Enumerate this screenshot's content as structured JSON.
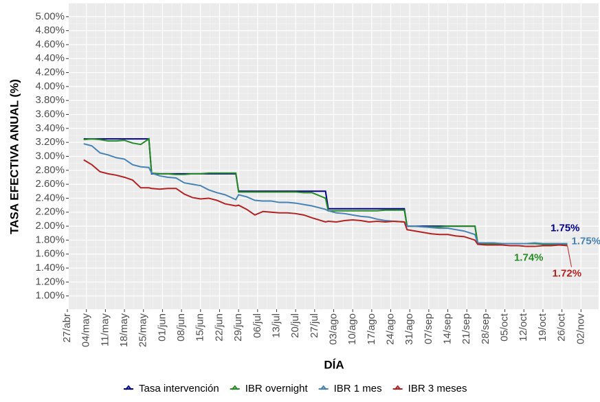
{
  "chart_data": {
    "type": "line",
    "x_label": "DÍA",
    "y_label": "TASA EFECTIVA ANUAL (%)",
    "xlim": [
      0.5,
      195.5
    ],
    "xticks": [
      {
        "value": 0,
        "label": "27/abr"
      },
      {
        "value": 7,
        "label": "04/may"
      },
      {
        "value": 14,
        "label": "11/may"
      },
      {
        "value": 21,
        "label": "18/may"
      },
      {
        "value": 28,
        "label": "25/may"
      },
      {
        "value": 35,
        "label": "01/jun"
      },
      {
        "value": 42,
        "label": "08/jun"
      },
      {
        "value": 49,
        "label": "15/jun"
      },
      {
        "value": 56,
        "label": "22/jun"
      },
      {
        "value": 63,
        "label": "29/jun"
      },
      {
        "value": 70,
        "label": "06/jul"
      },
      {
        "value": 77,
        "label": "13/jul"
      },
      {
        "value": 84,
        "label": "20/jul"
      },
      {
        "value": 91,
        "label": "27/jul"
      },
      {
        "value": 98,
        "label": "03/ago"
      },
      {
        "value": 105,
        "label": "10/ago"
      },
      {
        "value": 112,
        "label": "17/ago"
      },
      {
        "value": 119,
        "label": "24/ago"
      },
      {
        "value": 126,
        "label": "31/ago"
      },
      {
        "value": 133,
        "label": "07/sep"
      },
      {
        "value": 140,
        "label": "14/sep"
      },
      {
        "value": 147,
        "label": "21/sep"
      },
      {
        "value": 154,
        "label": "28/sep"
      },
      {
        "value": 161,
        "label": "05/oct"
      },
      {
        "value": 168,
        "label": "12/oct"
      },
      {
        "value": 175,
        "label": "19/oct"
      },
      {
        "value": 182,
        "label": "26/oct"
      },
      {
        "value": 189,
        "label": "02/nov"
      }
    ],
    "ylim": [
      0.81,
      5.19
    ],
    "yticks": [
      {
        "value": 1.0,
        "label": "1.00%"
      },
      {
        "value": 1.2,
        "label": "1.20%"
      },
      {
        "value": 1.4,
        "label": "1.40%"
      },
      {
        "value": 1.6,
        "label": "1.60%"
      },
      {
        "value": 1.8,
        "label": "1.80%"
      },
      {
        "value": 2.0,
        "label": "2.00%"
      },
      {
        "value": 2.2,
        "label": "2.20%"
      },
      {
        "value": 2.4,
        "label": "2.40%"
      },
      {
        "value": 2.6,
        "label": "2.60%"
      },
      {
        "value": 2.8,
        "label": "2.80%"
      },
      {
        "value": 3.0,
        "label": "3.00%"
      },
      {
        "value": 3.2,
        "label": "3.20%"
      },
      {
        "value": 3.4,
        "label": "3.40%"
      },
      {
        "value": 3.6,
        "label": "3.60%"
      },
      {
        "value": 3.8,
        "label": "3.80%"
      },
      {
        "value": 4.0,
        "label": "4.00%"
      },
      {
        "value": 4.2,
        "label": "4.20%"
      },
      {
        "value": 4.4,
        "label": "4.40%"
      },
      {
        "value": 4.6,
        "label": "4.60%"
      },
      {
        "value": 4.8,
        "label": "4.80%"
      },
      {
        "value": 5.0,
        "label": "5.00%"
      }
    ],
    "grid": true,
    "legend": "bottom",
    "x": [
      6,
      9,
      12,
      15,
      18,
      21,
      24,
      27,
      30,
      31,
      34,
      37,
      40,
      43,
      46,
      49,
      52,
      55,
      58,
      62,
      63,
      66,
      69,
      72,
      75,
      78,
      81,
      84,
      87,
      90,
      95,
      96,
      99,
      102,
      105,
      108,
      111,
      114,
      117,
      120,
      124,
      125,
      128,
      131,
      134,
      137,
      140,
      143,
      146,
      150,
      151,
      154,
      157,
      160,
      163,
      166,
      169,
      172,
      175,
      178,
      181,
      184
    ],
    "series": [
      {
        "name": "Tasa intervención",
        "color": "#00008b",
        "values": [
          3.25,
          3.25,
          3.25,
          3.25,
          3.25,
          3.25,
          3.25,
          3.25,
          3.25,
          2.75,
          2.75,
          2.75,
          2.75,
          2.75,
          2.75,
          2.75,
          2.75,
          2.75,
          2.75,
          2.75,
          2.5,
          2.5,
          2.5,
          2.5,
          2.5,
          2.5,
          2.5,
          2.5,
          2.5,
          2.5,
          2.5,
          2.25,
          2.25,
          2.25,
          2.25,
          2.25,
          2.25,
          2.25,
          2.25,
          2.25,
          2.25,
          2.0,
          2.0,
          2.0,
          2.0,
          2.0,
          2.0,
          2.0,
          2.0,
          2.0,
          1.75,
          1.75,
          1.75,
          1.75,
          1.75,
          1.75,
          1.75,
          1.75,
          1.75,
          1.75,
          1.75,
          1.75
        ]
      },
      {
        "name": "IBR overnight",
        "color": "#228b22",
        "values": [
          3.24,
          3.25,
          3.24,
          3.22,
          3.22,
          3.23,
          3.19,
          3.17,
          3.25,
          2.76,
          2.75,
          2.75,
          2.74,
          2.74,
          2.75,
          2.75,
          2.76,
          2.76,
          2.76,
          2.76,
          2.49,
          2.49,
          2.49,
          2.49,
          2.49,
          2.49,
          2.49,
          2.49,
          2.48,
          2.48,
          2.4,
          2.22,
          2.22,
          2.22,
          2.22,
          2.22,
          2.22,
          2.22,
          2.23,
          2.23,
          2.23,
          2.0,
          2.0,
          1.99,
          1.99,
          1.99,
          2.0,
          2.0,
          2.0,
          2.0,
          1.76,
          1.75,
          1.75,
          1.75,
          1.75,
          1.75,
          1.75,
          1.75,
          1.74,
          1.74,
          1.74,
          1.74
        ]
      },
      {
        "name": "IBR 1 mes",
        "color": "#4682b4",
        "values": [
          3.18,
          3.15,
          3.05,
          3.02,
          2.98,
          2.96,
          2.88,
          2.85,
          2.84,
          2.76,
          2.72,
          2.7,
          2.69,
          2.62,
          2.6,
          2.58,
          2.52,
          2.48,
          2.45,
          2.38,
          2.45,
          2.42,
          2.37,
          2.36,
          2.36,
          2.34,
          2.34,
          2.33,
          2.31,
          2.29,
          2.24,
          2.22,
          2.19,
          2.18,
          2.16,
          2.14,
          2.13,
          2.1,
          2.08,
          2.07,
          2.06,
          2.0,
          2.0,
          1.99,
          1.98,
          1.97,
          1.97,
          1.95,
          1.93,
          1.88,
          1.76,
          1.76,
          1.76,
          1.75,
          1.75,
          1.75,
          1.75,
          1.76,
          1.75,
          1.75,
          1.75,
          1.75
        ]
      },
      {
        "name": "IBR 3 meses",
        "color": "#b22222",
        "values": [
          2.95,
          2.88,
          2.78,
          2.75,
          2.73,
          2.7,
          2.66,
          2.55,
          2.55,
          2.54,
          2.53,
          2.54,
          2.54,
          2.46,
          2.41,
          2.39,
          2.4,
          2.37,
          2.32,
          2.29,
          2.3,
          2.24,
          2.16,
          2.21,
          2.2,
          2.19,
          2.19,
          2.18,
          2.16,
          2.12,
          2.06,
          2.07,
          2.06,
          2.08,
          2.09,
          2.08,
          2.06,
          2.07,
          2.06,
          2.07,
          2.06,
          1.95,
          1.93,
          1.91,
          1.89,
          1.88,
          1.88,
          1.86,
          1.85,
          1.8,
          1.74,
          1.73,
          1.73,
          1.73,
          1.72,
          1.72,
          1.71,
          1.71,
          1.72,
          1.72,
          1.73,
          1.72
        ]
      }
    ],
    "annotations": [
      {
        "text": "1.75%",
        "value": 1.75,
        "color": "#00008b"
      },
      {
        "text": "1.75%",
        "value": 1.75,
        "color": "#4682b4"
      },
      {
        "text": "1.74%",
        "value": 1.74,
        "color": "#228b22"
      },
      {
        "text": "1.72%",
        "value": 1.72,
        "color": "#b22222"
      }
    ]
  }
}
